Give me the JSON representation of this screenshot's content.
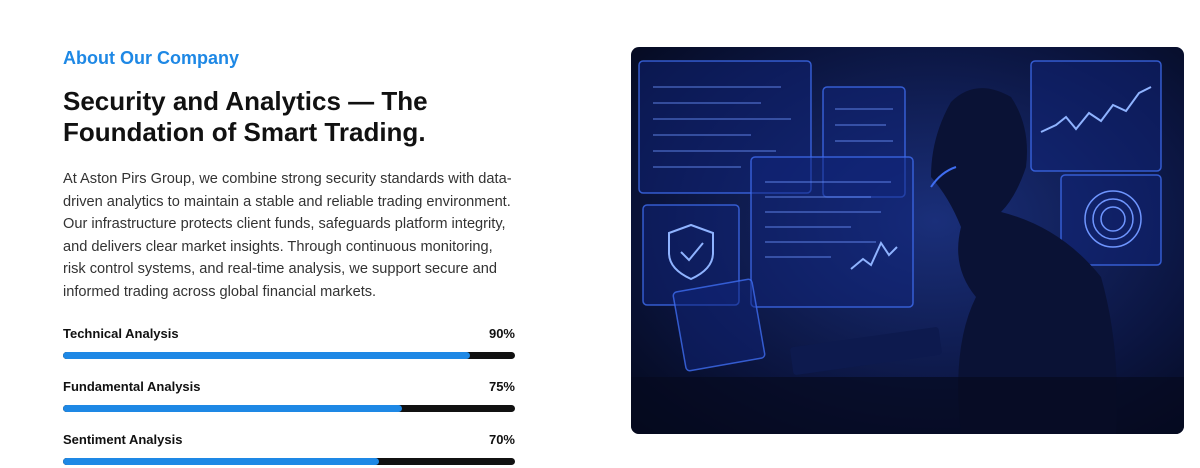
{
  "eyebrow": "About Our Company",
  "title": "Security and Analytics — The Foundation of Smart Trading.",
  "paragraph": "At Aston Pirs Group, we combine strong security standards with data-driven analytics to maintain a stable and reliable trading environment. Our infrastructure protects client funds, safeguards platform integrity, and delivers clear market insights. Through continuous monitoring, risk control systems, and real-time analysis, we support secure and informed trading across global financial markets.",
  "skills": [
    {
      "name": "Technical Analysis",
      "value": 90,
      "label": "90%"
    },
    {
      "name": "Fundamental Analysis",
      "value": 75,
      "label": "75%"
    },
    {
      "name": "Sentiment Analysis",
      "value": 70,
      "label": "70%"
    }
  ]
}
